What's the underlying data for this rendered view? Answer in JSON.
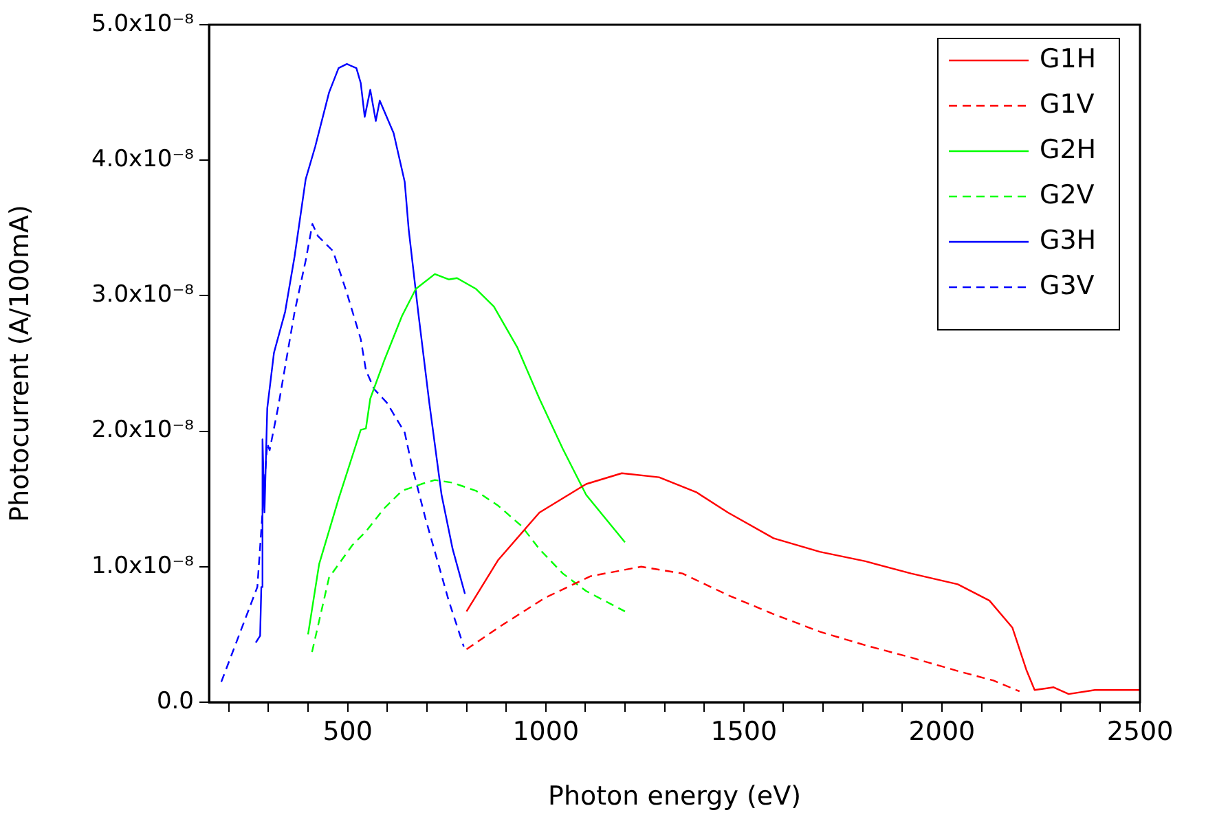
{
  "chart_data": {
    "type": "line",
    "xlabel": "Photon energy (eV)",
    "ylabel": "Photocurrent (A/100mA)",
    "xlim": [
      150,
      2500
    ],
    "xticks": [
      {
        "value": 200,
        "label": null
      },
      {
        "value": 300,
        "label": null
      },
      {
        "value": 400,
        "label": null
      },
      500,
      {
        "value": 600,
        "label": null
      },
      {
        "value": 700,
        "label": null
      },
      {
        "value": 800,
        "label": null
      },
      {
        "value": 900,
        "label": null
      },
      1000,
      {
        "value": 1100,
        "label": null
      },
      {
        "value": 1200,
        "label": null
      },
      {
        "value": 1300,
        "label": null
      },
      {
        "value": 1400,
        "label": null
      },
      1500,
      {
        "value": 1600,
        "label": null
      },
      {
        "value": 1700,
        "label": null
      },
      {
        "value": 1800,
        "label": null
      },
      {
        "value": 1900,
        "label": null
      },
      2000,
      {
        "value": 2100,
        "label": null
      },
      {
        "value": 2200,
        "label": null
      },
      {
        "value": 2300,
        "label": null
      },
      {
        "value": 2400,
        "label": null
      },
      2500
    ],
    "ylim": [
      0,
      5e-08
    ],
    "yticks": [
      {
        "value": 0,
        "label": "0.0"
      },
      {
        "value": 1e-08,
        "label": "1.0x10⁻⁸"
      },
      {
        "value": 2e-08,
        "label": "2.0x10⁻⁸"
      },
      {
        "value": 3e-08,
        "label": "3.0x10⁻⁸"
      },
      {
        "value": 4e-08,
        "label": "4.0x10⁻⁸"
      },
      {
        "value": 5e-08,
        "label": "5.0x10⁻⁸"
      }
    ],
    "grid": false,
    "legend": "top right",
    "marker": "none",
    "series": [
      {
        "name": "G1H",
        "color": "#ff0000",
        "line_style": "solid",
        "x": [
          800,
          880,
          984,
          1102,
          1192,
          1286,
          1380,
          1460,
          1575,
          1692,
          1807,
          1922,
          2040,
          2120,
          2178,
          2213,
          2234,
          2282,
          2320,
          2386,
          2500
        ],
        "values": [
          6.7e-09,
          1.05e-08,
          1.4e-08,
          1.61e-08,
          1.69e-08,
          1.66e-08,
          1.55e-08,
          1.4e-08,
          1.21e-08,
          1.11e-08,
          1.04e-08,
          9.5e-09,
          8.7e-09,
          7.5e-09,
          5.5e-09,
          2.4e-09,
          9e-10,
          1.1e-09,
          6e-10,
          9e-10,
          9e-10
        ]
      },
      {
        "name": "G1V",
        "color": "#ff0000",
        "line_style": "dashed",
        "x": [
          800,
          880,
          998,
          1113,
          1241,
          1345,
          1460,
          1575,
          1692,
          1807,
          1922,
          2040,
          2130,
          2196
        ],
        "values": [
          3.9e-09,
          5.5e-09,
          7.7e-09,
          9.3e-09,
          1e-08,
          9.5e-09,
          7.9e-09,
          6.5e-09,
          5.2e-09,
          4.2e-09,
          3.3e-09,
          2.3e-09,
          1.6e-09,
          8e-10
        ]
      },
      {
        "name": "G2H",
        "color": "#00ff00",
        "line_style": "solid",
        "x": [
          400,
          428,
          477,
          533,
          546,
          557,
          592,
          637,
          672,
          720,
          755,
          776,
          824,
          869,
          928,
          984,
          1043,
          1102,
          1200
        ],
        "values": [
          5e-09,
          1.02e-08,
          1.5e-08,
          2.01e-08,
          2.02e-08,
          2.24e-08,
          2.52e-08,
          2.85e-08,
          3.05e-08,
          3.16e-08,
          3.12e-08,
          3.13e-08,
          3.05e-08,
          2.92e-08,
          2.62e-08,
          2.24e-08,
          1.87e-08,
          1.53e-08,
          1.18e-08
        ]
      },
      {
        "name": "G2V",
        "color": "#00ff00",
        "line_style": "dashed",
        "x": [
          410,
          453,
          512,
          546,
          592,
          637,
          686,
          720,
          765,
          824,
          880,
          939,
          984,
          1043,
          1102,
          1200
        ],
        "values": [
          3.7e-09,
          9.2e-09,
          1.16e-08,
          1.26e-08,
          1.43e-08,
          1.56e-08,
          1.61e-08,
          1.64e-08,
          1.62e-08,
          1.56e-08,
          1.45e-08,
          1.3e-08,
          1.13e-08,
          9.5e-09,
          8.2e-09,
          6.7e-09
        ]
      },
      {
        "name": "G3H",
        "color": "#0000ff",
        "line_style": "solid",
        "x": [
          268,
          279,
          282,
          285,
          290,
          297,
          314,
          342,
          366,
          394,
          418,
          453,
          477,
          498,
          522,
          533,
          543,
          557,
          571,
          581,
          616,
          644,
          654,
          678,
          706,
          737,
          765,
          796
        ],
        "values": [
          4.4e-09,
          4.9e-09,
          8.5e-09,
          1.94e-08,
          1.4e-08,
          2.17e-08,
          2.58e-08,
          2.88e-08,
          3.29e-08,
          3.86e-08,
          4.1e-08,
          4.5e-08,
          4.68e-08,
          4.71e-08,
          4.68e-08,
          4.57e-08,
          4.32e-08,
          4.52e-08,
          4.29e-08,
          4.44e-08,
          4.2e-08,
          3.84e-08,
          3.49e-08,
          2.88e-08,
          2.21e-08,
          1.53e-08,
          1.13e-08,
          8e-09
        ]
      },
      {
        "name": "G3V",
        "color": "#0000ff",
        "line_style": "dashed",
        "x": [
          181,
          272,
          297,
          303,
          324,
          366,
          394,
          411,
          425,
          463,
          498,
          533,
          546,
          567,
          599,
          644,
          661,
          696,
          755,
          793
        ],
        "values": [
          1.5e-09,
          8.5e-09,
          1.91e-08,
          1.86e-08,
          2.17e-08,
          2.88e-08,
          3.26e-08,
          3.53e-08,
          3.44e-08,
          3.33e-08,
          3.02e-08,
          2.68e-08,
          2.45e-08,
          2.31e-08,
          2.21e-08,
          1.99e-08,
          1.76e-08,
          1.36e-08,
          7.5e-09,
          4.1e-09
        ]
      }
    ]
  }
}
